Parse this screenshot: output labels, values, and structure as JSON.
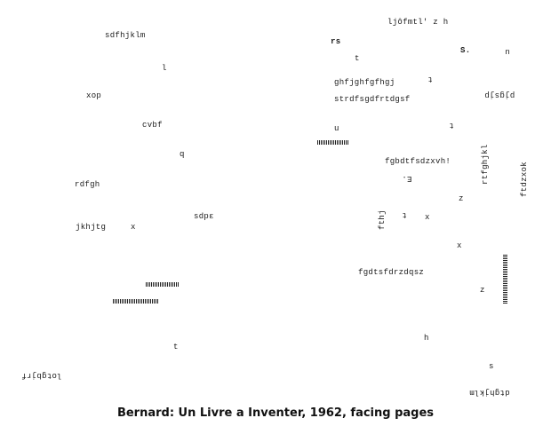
{
  "left_page": {
    "f1": "sdfhjklm",
    "f2": "l",
    "f3": "xop",
    "f4": "cvbf",
    "f5": "q",
    "f6": "rdfgh",
    "f7": "jkhjtg",
    "f8": "x",
    "f9": "sdpɛ",
    "f10": "t",
    "f11": "lotgbjrf"
  },
  "right_page": {
    "f1": "ljôfmtl' z h",
    "f2": "rs",
    "f3": "t",
    "f4": "S.",
    "f5": "u",
    "f6": "t",
    "f7": "ghfjghfgfhgj",
    "f8": "strdfsgdfrtdgsf",
    "f9": "pjgsjp",
    "f10": "u",
    "f11": "t",
    "f12": "fgbdtfsdzxvh!",
    "f13": "rtfghjkl",
    "f14": "ftdzxok",
    "f15": "E.",
    "f16": "fthj",
    "f17": "t",
    "f18": "x",
    "f19": "z",
    "f20": "x",
    "f21": "fgdtsfdrzdqsz",
    "f22": "z",
    "f23": "h",
    "f24": "s",
    "f25": "dtghjklm"
  },
  "caption": "Bernard: Un Livre a Inventer, 1962, facing pages"
}
